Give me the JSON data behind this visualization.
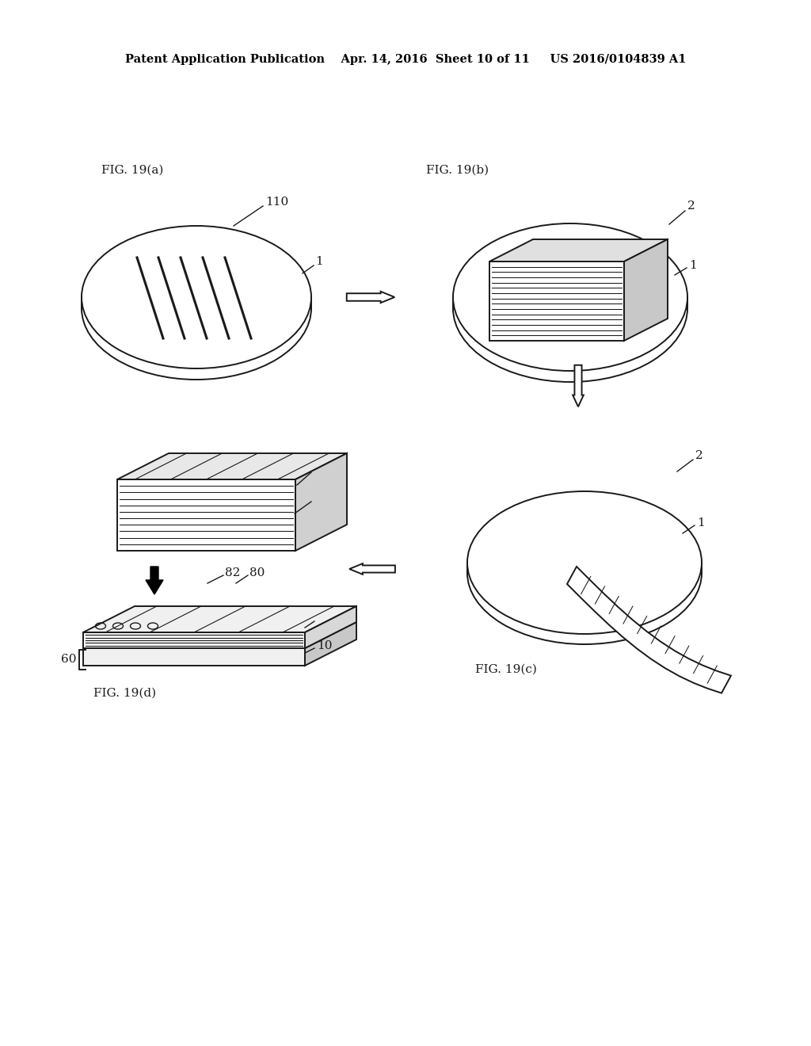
{
  "bg_color": "#ffffff",
  "line_color": "#1a1a1a",
  "header_text": "Patent Application Publication    Apr. 14, 2016  Sheet 10 of 11     US 2016/0104839 A1",
  "fig_labels": {
    "19a": "FIG. 19(a)",
    "19b": "FIG. 19(b)",
    "19c": "FIG. 19(c)",
    "19d": "FIG. 19(d)"
  }
}
